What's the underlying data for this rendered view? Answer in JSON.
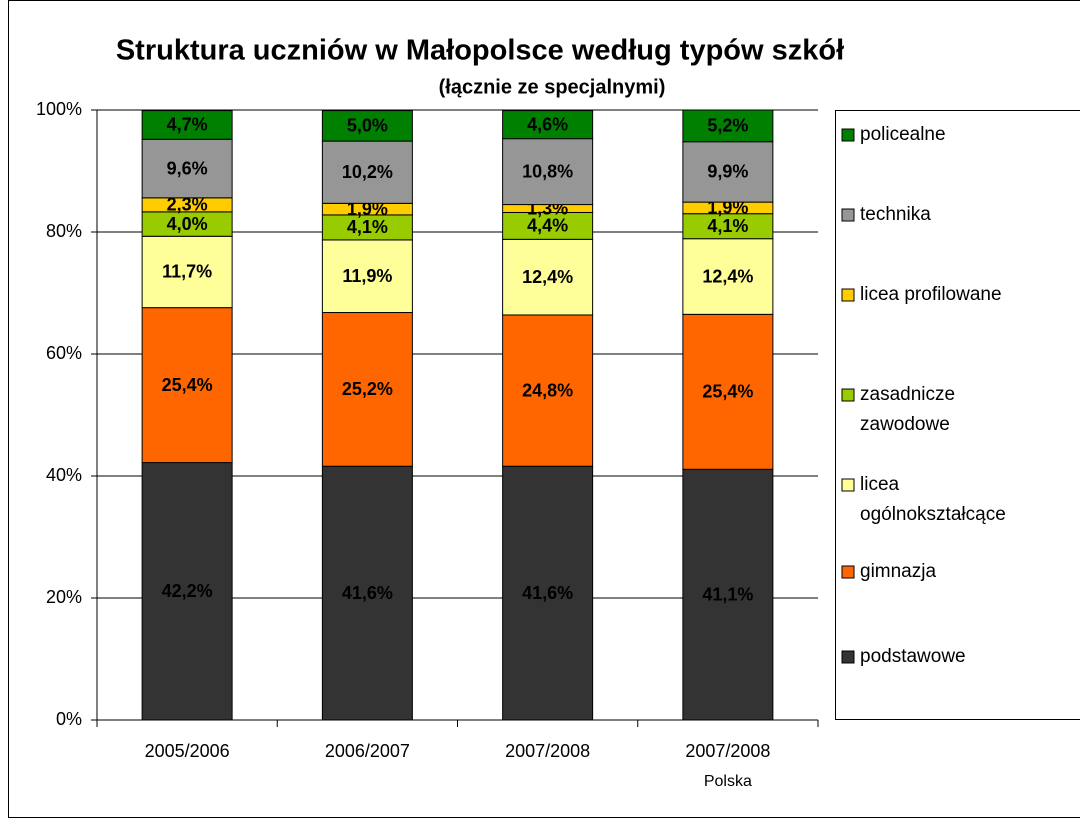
{
  "chart_data": {
    "type": "stacked_bar",
    "title": "Struktura uczniów w Małopolsce według typów szkół",
    "subtitle": "(łącznie ze specjalnymi)",
    "categories": [
      "2005/2006",
      "2006/2007",
      "2007/2008",
      "2007/2008\nPolska"
    ],
    "ylim": [
      0,
      100
    ],
    "yticks": [
      {
        "value": 0,
        "label": "0%"
      },
      {
        "value": 20,
        "label": "20%"
      },
      {
        "value": 40,
        "label": "40%"
      },
      {
        "value": 60,
        "label": "60%"
      },
      {
        "value": 80,
        "label": "80%"
      },
      {
        "value": 100,
        "label": "100%"
      }
    ],
    "grid": true,
    "legend": "right",
    "series": [
      {
        "name": "podstawowe",
        "color": "#333333",
        "values": [
          42.2,
          41.6,
          41.6,
          41.1
        ],
        "value_labels": [
          "42,2%",
          "41,6%",
          "41,6%",
          "41,1%"
        ]
      },
      {
        "name": "gimnazja",
        "color": "#ff6600",
        "values": [
          25.4,
          25.2,
          24.8,
          25.4
        ],
        "value_labels": [
          "25,4%",
          "25,2%",
          "24,8%",
          "25,4%"
        ]
      },
      {
        "name": "licea ogólnokształcące",
        "color": "#ffff99",
        "values": [
          11.7,
          11.9,
          12.4,
          12.4
        ],
        "value_labels": [
          "11,7%",
          "11,9%",
          "12,4%",
          "12,4%"
        ]
      },
      {
        "name": "zasadnicze zawodowe",
        "color": "#99cc00",
        "values": [
          4.0,
          4.1,
          4.4,
          4.1
        ],
        "value_labels": [
          "4,0%",
          "4,1%",
          "4,4%",
          "4,1%"
        ]
      },
      {
        "name": "licea profilowane",
        "color": "#ffcc00",
        "values": [
          2.3,
          1.9,
          1.3,
          1.9
        ],
        "value_labels": [
          "2,3%",
          "1,9%",
          "1,3%",
          "1,9%"
        ]
      },
      {
        "name": "technika",
        "color": "#969696",
        "values": [
          9.6,
          10.2,
          10.8,
          9.9
        ],
        "value_labels": [
          "9,6%",
          "10,2%",
          "10,8%",
          "9,9%"
        ]
      },
      {
        "name": "policealne",
        "color": "#008000",
        "values": [
          4.7,
          5.0,
          4.6,
          5.2
        ],
        "value_labels": [
          "4,7%",
          "5,0%",
          "4,6%",
          "5,2%"
        ]
      }
    ]
  }
}
